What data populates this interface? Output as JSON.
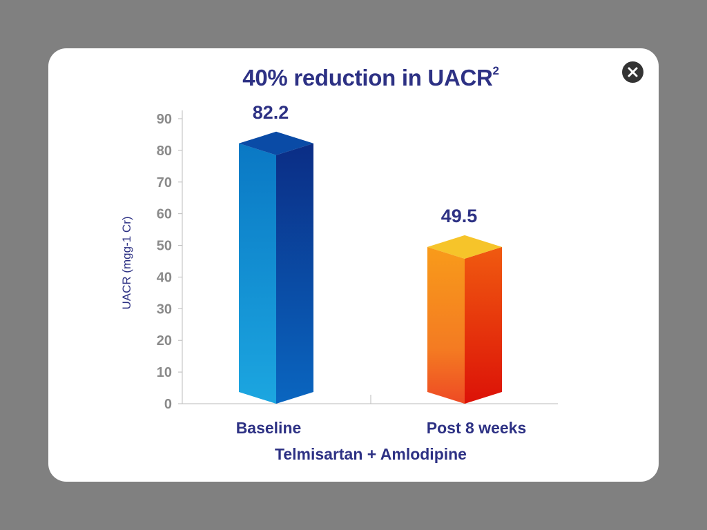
{
  "dialog": {
    "close_icon": "close-icon"
  },
  "chart_data": {
    "type": "bar",
    "title": "40% reduction in UACR",
    "title_superscript": "2",
    "ylabel": "UACR (mgg-1 Cr)",
    "xlabel": "Telmisartan + Amlodipine",
    "categories": [
      "Baseline",
      "Post 8 weeks"
    ],
    "values": [
      82.2,
      49.5
    ],
    "value_labels": [
      "82.2",
      "49.5"
    ],
    "ylim": [
      0,
      90
    ],
    "yticks": [
      0,
      10,
      20,
      30,
      40,
      50,
      60,
      70,
      80,
      90
    ],
    "grid": false,
    "legend": "none",
    "colors": {
      "title": "#2d3184",
      "axis_text": "#888888",
      "axis_line": "#bbbbbb",
      "bar_baseline": [
        "#1da8e2",
        "#0a4fa8",
        "#0b2e88"
      ],
      "bar_post": [
        "#f89a1c",
        "#f0b82a",
        "#e03010"
      ]
    }
  }
}
